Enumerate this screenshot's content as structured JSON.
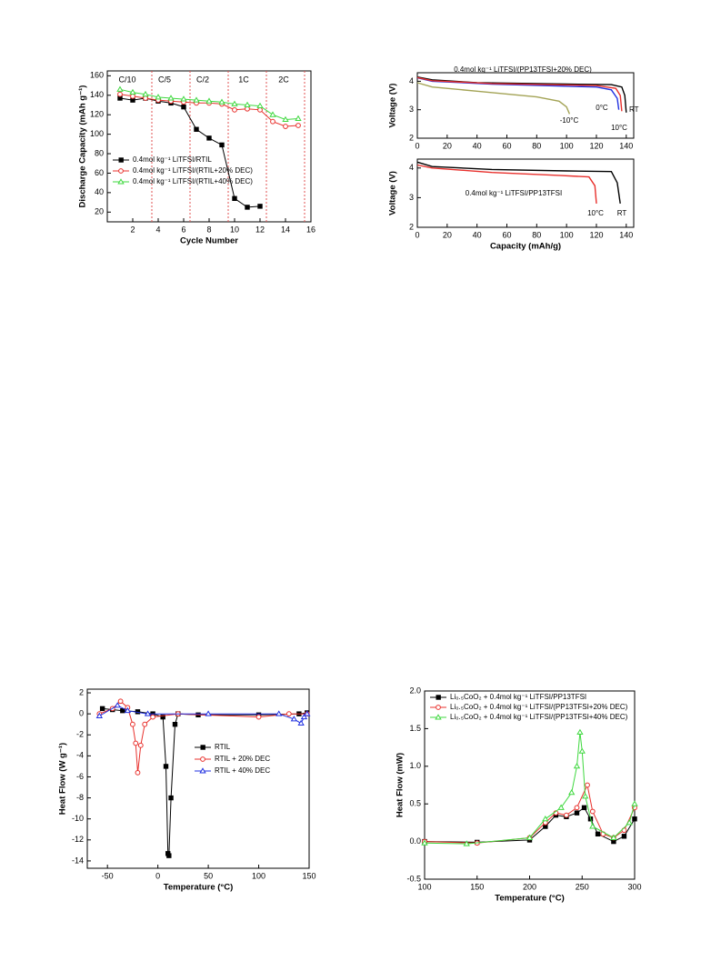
{
  "chart_data": [
    {
      "type": "line",
      "xlabel": "Cycle Number",
      "ylabel": "Discharge Capacity (mAh g⁻¹)",
      "xlim": [
        0,
        16
      ],
      "xticks": [
        2,
        4,
        6,
        8,
        10,
        12,
        14,
        16
      ],
      "ylim": [
        10,
        165
      ],
      "yticks": [
        20,
        40,
        60,
        80,
        100,
        120,
        140,
        160
      ],
      "regions": [
        "C/10",
        "C/5",
        "C/2",
        "1C",
        "2C"
      ],
      "dividers": [
        3.5,
        6.5,
        9.5,
        12.5,
        15.5
      ],
      "divider_color": "#e05050",
      "legend": "lower left",
      "series": [
        {
          "name": "0.4mol kg⁻¹ LiTFSI/RTIL",
          "color": "#000000",
          "marker": "square",
          "filled": true,
          "x": [
            1,
            2,
            3,
            4,
            5,
            6,
            7,
            8,
            9,
            10,
            11,
            12
          ],
          "values": [
            137,
            135,
            137,
            134,
            132,
            128,
            105,
            96,
            89,
            34,
            25,
            26
          ]
        },
        {
          "name": "0.4mol kg⁻¹ LiTFSI/(RTIL+20% DEC)",
          "color": "#e8302c",
          "marker": "circle",
          "filled": false,
          "x": [
            1,
            2,
            3,
            4,
            5,
            6,
            7,
            8,
            9,
            10,
            11,
            12,
            13,
            14,
            15
          ],
          "values": [
            141,
            139,
            137,
            135,
            134,
            133,
            132,
            132,
            131,
            125,
            126,
            125,
            113,
            108,
            109
          ]
        },
        {
          "name": "0.4mol kg⁻¹ LiTFSI/(RTIL+40% DEC)",
          "color": "#3fd83f",
          "marker": "triangle",
          "filled": false,
          "x": [
            1,
            2,
            3,
            4,
            5,
            6,
            7,
            8,
            9,
            10,
            11,
            12,
            13,
            14,
            15
          ],
          "values": [
            146,
            143,
            141,
            138,
            137,
            136,
            135,
            134,
            133,
            131,
            130,
            129,
            120,
            115,
            116
          ]
        }
      ]
    },
    {
      "type": "line",
      "ylabel": "Voltage (V)",
      "xlim": [
        0,
        145
      ],
      "xticks": [
        0,
        20,
        40,
        60,
        80,
        100,
        120,
        140
      ],
      "ylim": [
        2,
        4.3
      ],
      "yticks": [
        2,
        3,
        4
      ],
      "annotations": [
        "0.4mol kg⁻¹ LiTFSI/(PP13TFSI+20% DEC)",
        "RT",
        "0°C",
        "10°C",
        "-10°C"
      ],
      "series": [
        {
          "name": "RT",
          "color": "#000000",
          "x": [
            0,
            10,
            40,
            100,
            130,
            137,
            139,
            140
          ],
          "values": [
            4.15,
            4.05,
            3.95,
            3.9,
            3.88,
            3.8,
            3.5,
            2.9
          ]
        },
        {
          "name": "0°C",
          "color": "#2030e0",
          "x": [
            0,
            10,
            50,
            120,
            130,
            134,
            135
          ],
          "values": [
            4.12,
            4.0,
            3.9,
            3.8,
            3.7,
            3.4,
            3.0
          ]
        },
        {
          "name": "10°C",
          "color": "#e8302c",
          "x": [
            0,
            10,
            50,
            120,
            133,
            136,
            137
          ],
          "values": [
            4.13,
            4.02,
            3.92,
            3.85,
            3.75,
            3.5,
            2.95
          ]
        },
        {
          "name": "-10°C",
          "color": "#a3a355",
          "x": [
            0,
            10,
            40,
            80,
            95,
            100,
            102
          ],
          "values": [
            3.95,
            3.8,
            3.65,
            3.45,
            3.3,
            3.1,
            2.85
          ]
        }
      ]
    },
    {
      "type": "line",
      "xlabel": "Capacity (mAh/g)",
      "ylabel": "Voltage (V)",
      "xlim": [
        0,
        145
      ],
      "xticks": [
        0,
        20,
        40,
        60,
        80,
        100,
        120,
        140
      ],
      "ylim": [
        2,
        4.3
      ],
      "yticks": [
        2,
        3,
        4
      ],
      "annotations": [
        "0.4mol kg⁻¹ LiTFSI/PP13TFSI",
        "10°C",
        "RT"
      ],
      "series": [
        {
          "name": "RT",
          "color": "#000000",
          "x": [
            0,
            10,
            50,
            100,
            130,
            134,
            136
          ],
          "values": [
            4.2,
            4.05,
            3.95,
            3.9,
            3.88,
            3.5,
            2.8
          ]
        },
        {
          "name": "10°C",
          "color": "#e8302c",
          "x": [
            0,
            10,
            50,
            95,
            115,
            119,
            120
          ],
          "values": [
            4.1,
            4.0,
            3.85,
            3.75,
            3.7,
            3.4,
            2.8
          ]
        }
      ]
    },
    {
      "type": "line",
      "xlabel": "Temperature (°C)",
      "ylabel": "Heat Flow (W g⁻¹)",
      "xlim": [
        -70,
        150
      ],
      "xticks": [
        -50,
        0,
        50,
        100,
        150
      ],
      "ylim": [
        -14.7,
        2.35
      ],
      "yticks": [
        2,
        0,
        -2,
        -4,
        -6,
        -8,
        -10,
        -12,
        -14
      ],
      "legend": "center right",
      "series": [
        {
          "name": "RTIL",
          "color": "#000000",
          "marker": "square",
          "filled": true,
          "x": [
            -55,
            -45,
            -35,
            -20,
            -5,
            5,
            8,
            10,
            11,
            13,
            17,
            20,
            40,
            100,
            140,
            148
          ],
          "values": [
            0.5,
            0.4,
            0.3,
            0.2,
            0.0,
            -0.3,
            -5,
            -13.3,
            -13.5,
            -8,
            -1,
            0,
            -0.1,
            -0.1,
            0,
            0.1
          ]
        },
        {
          "name": "RTIL + 20% DEC",
          "color": "#e8302c",
          "marker": "circle",
          "filled": false,
          "x": [
            -58,
            -45,
            -37,
            -30,
            -25,
            -22,
            -20,
            -17,
            -13,
            -5,
            20,
            100,
            130,
            148
          ],
          "values": [
            0,
            0.5,
            1.2,
            0.6,
            -1,
            -2.8,
            -5.6,
            -3,
            -1,
            -0.3,
            0,
            -0.3,
            0,
            0
          ]
        },
        {
          "name": "RTIL + 40% DEC",
          "color": "#2030e0",
          "marker": "triangle",
          "filled": false,
          "x": [
            -58,
            -40,
            -30,
            -10,
            50,
            120,
            135,
            142,
            145,
            148
          ],
          "values": [
            -0.2,
            0.8,
            0.3,
            0,
            0,
            0,
            -0.5,
            -0.9,
            -0.3,
            0
          ]
        }
      ]
    },
    {
      "type": "line",
      "xlabel": "Temperature (°C)",
      "ylabel": "Heat Flow (mW)",
      "xlim": [
        100,
        300
      ],
      "xticks": [
        100,
        150,
        200,
        250,
        300
      ],
      "ylim": [
        -0.5,
        2.0
      ],
      "yticks": [
        -0.5,
        {
          "value": 0,
          "label": "0.0"
        },
        0.5,
        {
          "value": 1,
          "label": "1.0"
        },
        1.5,
        {
          "value": 2,
          "label": "2.0"
        }
      ],
      "legend": "upper left",
      "series": [
        {
          "name": "Li₀.₅CoO₂ + 0.4mol kg⁻¹ LiTFSI/PP13TFSI",
          "color": "#000000",
          "marker": "square",
          "filled": true,
          "x": [
            100,
            150,
            200,
            215,
            225,
            235,
            245,
            252,
            258,
            265,
            280,
            290,
            300
          ],
          "values": [
            0.0,
            -0.01,
            0.02,
            0.2,
            0.35,
            0.33,
            0.38,
            0.45,
            0.3,
            0.1,
            0.0,
            0.07,
            0.3
          ]
        },
        {
          "name": "Li₀.₅CoO₂ + 0.4mol kg⁻¹ LiTFSI/(PP13TFSI+20% DEC)",
          "color": "#e8302c",
          "marker": "circle",
          "filled": false,
          "x": [
            100,
            150,
            200,
            215,
            225,
            235,
            245,
            255,
            260,
            270,
            280,
            290,
            300
          ],
          "values": [
            0.0,
            -0.02,
            0.05,
            0.25,
            0.38,
            0.35,
            0.45,
            0.75,
            0.4,
            0.1,
            0.05,
            0.15,
            0.45
          ]
        },
        {
          "name": "Li₀.₅CoO₂ + 0.4mol kg⁻¹ LiTFSI/(PP13TFSI+40% DEC)",
          "color": "#3fd83f",
          "marker": "triangle",
          "filled": false,
          "x": [
            100,
            140,
            200,
            215,
            230,
            240,
            245,
            248,
            250,
            253,
            260,
            280,
            295,
            300
          ],
          "values": [
            -0.02,
            -0.03,
            0.05,
            0.3,
            0.45,
            0.65,
            1.0,
            1.45,
            1.2,
            0.6,
            0.2,
            0.05,
            0.25,
            0.5
          ]
        }
      ]
    }
  ]
}
